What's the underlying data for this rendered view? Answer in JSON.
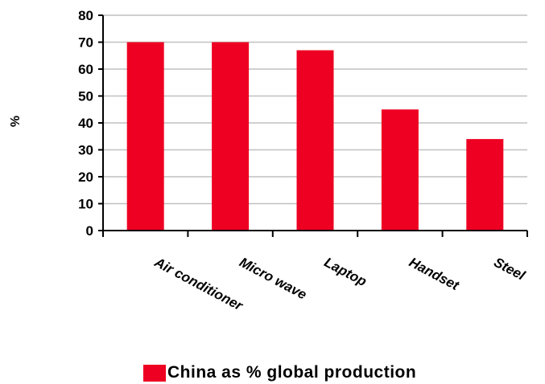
{
  "chart_data": {
    "type": "bar",
    "title": "",
    "xlabel": "",
    "ylabel": "%",
    "categories": [
      "Air conditioner",
      "Micro wave",
      "Laptop",
      "Handset",
      "Steel"
    ],
    "series": [
      {
        "name": "China as % global production",
        "values": [
          70,
          70,
          67,
          45,
          34
        ]
      }
    ],
    "ylim": [
      0,
      80
    ],
    "yticks": [
      0,
      10,
      20,
      30,
      40,
      50,
      60,
      70,
      80
    ],
    "grid": true,
    "legend": "bottom",
    "colors": {
      "bar": "#ee0022",
      "grid": "#c0c0c0",
      "axis": "#000000"
    }
  }
}
